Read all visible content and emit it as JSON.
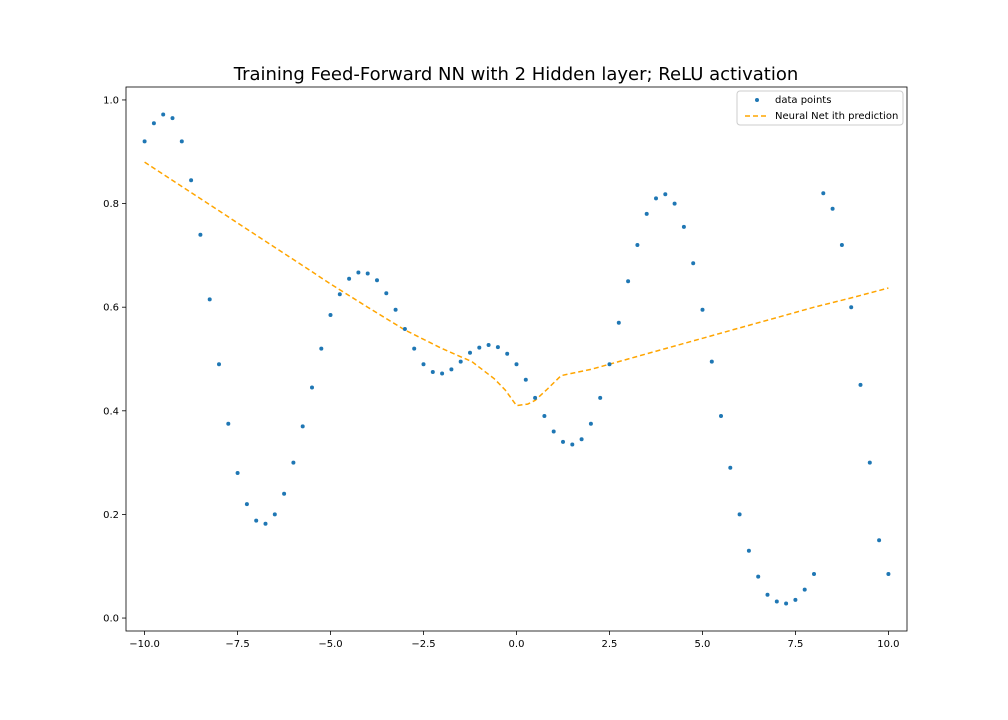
{
  "chart_data": {
    "type": "scatter",
    "title": "Training Feed-Forward NN with 2 Hidden layer; ReLU activation",
    "xlabel": "",
    "ylabel": "",
    "xlim": [
      -10.5,
      10.5
    ],
    "ylim": [
      -0.025,
      1.025
    ],
    "xticks": [
      -10.0,
      -7.5,
      -5.0,
      -2.5,
      0.0,
      2.5,
      5.0,
      7.5,
      10.0
    ],
    "xtick_labels": [
      "−10.0",
      "−7.5",
      "−5.0",
      "−2.5",
      "0.0",
      "2.5",
      "5.0",
      "7.5",
      "10.0"
    ],
    "yticks": [
      0.0,
      0.2,
      0.4,
      0.6,
      0.8,
      1.0
    ],
    "ytick_labels": [
      "0.0",
      "0.2",
      "0.4",
      "0.6",
      "0.8",
      "1.0"
    ],
    "grid": false,
    "legend_position": "top-right",
    "series": [
      {
        "name": "data points",
        "kind": "scatter",
        "color": "#1f77b4",
        "x": [
          -10.0,
          -9.75,
          -9.5,
          -9.25,
          -9.0,
          -8.75,
          -8.5,
          -8.25,
          -8.0,
          -7.75,
          -7.5,
          -7.25,
          -7.0,
          -6.75,
          -6.5,
          -6.25,
          -6.0,
          -5.75,
          -5.5,
          -5.25,
          -5.0,
          -4.75,
          -4.5,
          -4.25,
          -4.0,
          -3.75,
          -3.5,
          -3.25,
          -3.0,
          -2.75,
          -2.5,
          -2.25,
          -2.0,
          -1.75,
          -1.5,
          -1.25,
          -1.0,
          -0.75,
          -0.5,
          -0.25,
          0.0,
          0.25,
          0.5,
          0.75,
          1.0,
          1.25,
          1.5,
          1.75,
          2.0,
          2.25,
          2.5,
          2.75,
          3.0,
          3.25,
          3.5,
          3.75,
          4.0,
          4.25,
          4.5,
          4.75,
          5.0,
          5.25,
          5.5,
          5.75,
          6.0,
          6.25,
          6.5,
          6.75,
          7.0,
          7.25,
          7.5,
          7.75,
          8.0,
          8.25,
          8.5,
          8.75,
          9.0,
          9.25,
          9.5,
          9.75,
          10.0
        ],
        "y": [
          0.92,
          0.955,
          0.972,
          0.965,
          0.92,
          0.845,
          0.74,
          0.615,
          0.49,
          0.375,
          0.28,
          0.22,
          0.188,
          0.182,
          0.2,
          0.24,
          0.3,
          0.37,
          0.445,
          0.52,
          0.585,
          0.625,
          0.655,
          0.667,
          0.665,
          0.652,
          0.627,
          0.595,
          0.558,
          0.52,
          0.49,
          0.475,
          0.472,
          0.48,
          0.495,
          0.512,
          0.522,
          0.527,
          0.523,
          0.51,
          0.49,
          0.46,
          0.425,
          0.39,
          0.36,
          0.34,
          0.335,
          0.345,
          0.375,
          0.425,
          0.49,
          0.57,
          0.65,
          0.72,
          0.78,
          0.81,
          0.818,
          0.8,
          0.755,
          0.685,
          0.595,
          0.495,
          0.39,
          0.29,
          0.2,
          0.13,
          0.08,
          0.045,
          0.032,
          0.028,
          0.035,
          0.055,
          0.085,
          0.82,
          0.79,
          0.72,
          0.6,
          0.45,
          0.3,
          0.15,
          0.085
        ]
      },
      {
        "name": "Neural Net ith prediction",
        "kind": "line",
        "style": "dashed",
        "color": "#ffa500",
        "x": [
          -10.0,
          -9.0,
          -8.0,
          -7.0,
          -6.0,
          -5.0,
          -4.0,
          -3.0,
          -2.0,
          -1.2,
          -0.6,
          -0.3,
          0.0,
          0.3,
          0.5,
          0.8,
          1.2,
          2.0,
          3.0,
          4.0,
          5.0,
          6.0,
          7.0,
          8.0,
          9.0,
          10.0
        ],
        "y": [
          0.88,
          0.833,
          0.786,
          0.739,
          0.692,
          0.645,
          0.6,
          0.556,
          0.52,
          0.495,
          0.462,
          0.44,
          0.41,
          0.413,
          0.42,
          0.44,
          0.468,
          0.48,
          0.5,
          0.52,
          0.54,
          0.56,
          0.58,
          0.6,
          0.618,
          0.637
        ]
      }
    ]
  }
}
